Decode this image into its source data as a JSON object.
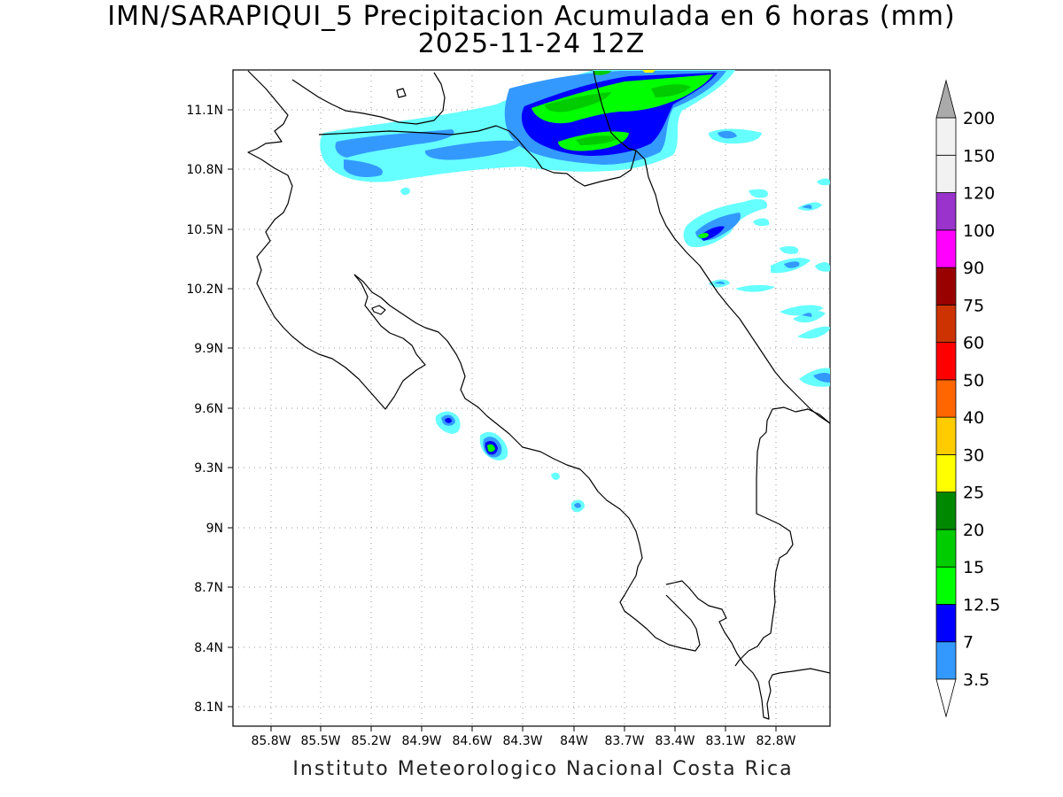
{
  "header": {
    "title_line1": "IMN/SARAPIQUI_5 Precipitacion Acumulada en 6 horas (mm)",
    "title_line2": "2025-11-24 12Z"
  },
  "footer": {
    "credit": "Instituto Meteorologico Nacional Costa Rica"
  },
  "map": {
    "lat_range": [
      8.0,
      11.3
    ],
    "lon_range": [
      -85.95,
      -82.95
    ],
    "lat_ticks": [
      "11.1N",
      "10.8N",
      "10.5N",
      "10.2N",
      "9.9N",
      "9.6N",
      "9.3N",
      "9N",
      "8.7N",
      "8.4N",
      "8.1N"
    ],
    "lon_ticks": [
      "85.8W",
      "85.5W",
      "85.2W",
      "84.9W",
      "84.6W",
      "84.3W",
      "84W",
      "83.7W",
      "83.4W",
      "83.1W",
      "82.8W"
    ],
    "grid": "dotted"
  },
  "colorbar": {
    "units": "mm",
    "levels": [
      "3.5",
      "7",
      "12.5",
      "15",
      "20",
      "25",
      "30",
      "40",
      "50",
      "60",
      "75",
      "90",
      "100",
      "120",
      "150",
      "200"
    ],
    "colors": [
      "#66ffff",
      "#3399ff",
      "#0000ff",
      "#00ff00",
      "#00cc00",
      "#008800",
      "#ffff00",
      "#ffcc00",
      "#ff6600",
      "#ff0000",
      "#cc3300",
      "#990000",
      "#ff00ff",
      "#9933cc",
      "#f2f2f2",
      "#aaaaaa"
    ]
  }
}
